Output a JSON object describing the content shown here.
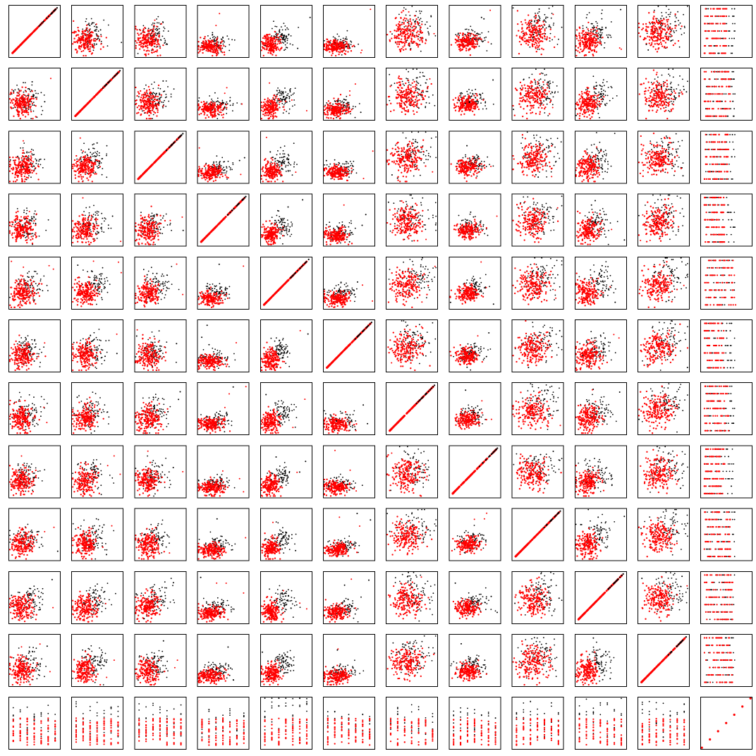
{
  "chart_data": {
    "type": "scatter",
    "layout": "scatter-matrix",
    "n_variables": 12,
    "ticks_shown": false,
    "axis_labels_shown": false,
    "title": "",
    "grid": false,
    "legend": "none",
    "series": [
      {
        "color": "#000000",
        "role": "class-0 points (drawn underneath)"
      },
      {
        "color": "#ff0000",
        "role": "class-1 points (drawn on top)"
      }
    ],
    "last_variable_levels": 7,
    "panel_shape_by_column": [
      "skew-right",
      "skew-right",
      "cluster",
      "low-flat",
      "sharp-skew",
      "low-flat",
      "dense-blob",
      "elongated",
      "dense-blob",
      "cluster",
      "dense-blob",
      "discrete"
    ],
    "relative_black_offset": [
      0.08,
      0.12,
      0.1,
      0.06,
      0.18,
      0.05,
      0.1,
      0.06,
      0.12,
      0.15,
      0.14,
      0.0
    ]
  }
}
